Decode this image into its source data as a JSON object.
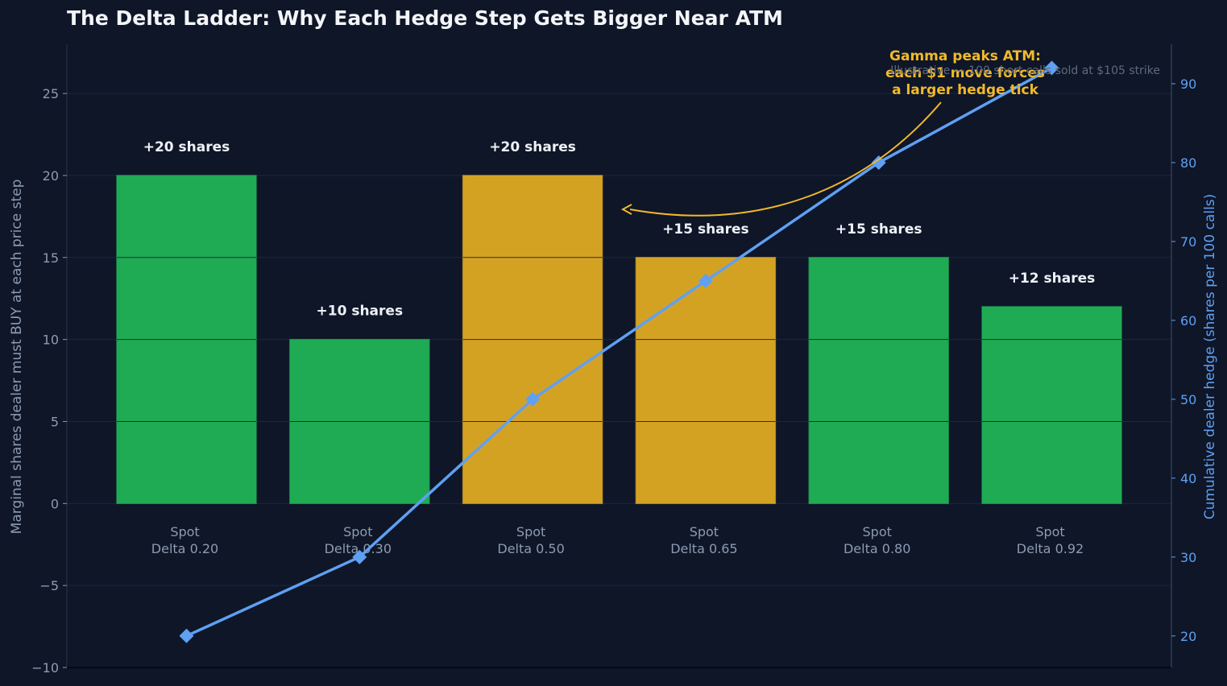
{
  "colors": {
    "background": "#0e1628",
    "grid": "#1c2740",
    "axis_text": "#8d9bb1",
    "right_axis": "#5fa0f2",
    "title": "#f3f5f8",
    "bar_green": "#1fab54",
    "bar_gold": "#d4a223",
    "bar_label": "#eef1f6",
    "line": "#5fa0f2",
    "annotation": "#f2b92a",
    "subtitle": "#5d6a80"
  },
  "chart_data": {
    "type": "bar",
    "title": "The Delta Ladder: Why Each Hedge Step Gets Bigger Near ATM",
    "subtitle": "Illustrative — 100 short calls sold at $105 strike",
    "categories": [
      [
        "Spot",
        "Delta 0.20"
      ],
      [
        "Spot",
        "Delta 0.30"
      ],
      [
        "Spot",
        "Delta 0.50"
      ],
      [
        "Spot",
        "Delta 0.65"
      ],
      [
        "Spot",
        "Delta 0.80"
      ],
      [
        "Spot",
        "Delta 0.92"
      ]
    ],
    "values": [
      20,
      10,
      20,
      15,
      15,
      12
    ],
    "bar_labels": [
      "+20 shares",
      "+10 shares",
      "+20 shares",
      "+15 shares",
      "+15 shares",
      "+12 shares"
    ],
    "highlight": [
      false,
      false,
      true,
      true,
      false,
      false
    ],
    "ylabel": "Marginal shares dealer must BUY at each price step",
    "ylim": [
      -10,
      28
    ],
    "yticks": [
      -10,
      -5,
      0,
      5,
      10,
      15,
      20,
      25
    ],
    "ytick_labels": [
      "−10",
      "−5",
      "0",
      "5",
      "10",
      "15",
      "20",
      "25"
    ],
    "y2label": "Cumulative dealer hedge (shares per 100 calls)",
    "y2lim": [
      16,
      95
    ],
    "y2ticks": [
      20,
      30,
      40,
      50,
      60,
      70,
      80,
      90
    ],
    "y2tick_labels": [
      "20",
      "30",
      "40",
      "50",
      "60",
      "70",
      "80",
      "90"
    ],
    "line_series": {
      "values": [
        20,
        30,
        50,
        65,
        80,
        92
      ],
      "marker": "diamond"
    },
    "annotation": {
      "lines": [
        "Gamma peaks ATM:",
        "each $1 move forces",
        "a larger hedge tick"
      ],
      "points_to": "between the Delta 0.50 and Delta 0.65 bars"
    },
    "grid": true
  }
}
